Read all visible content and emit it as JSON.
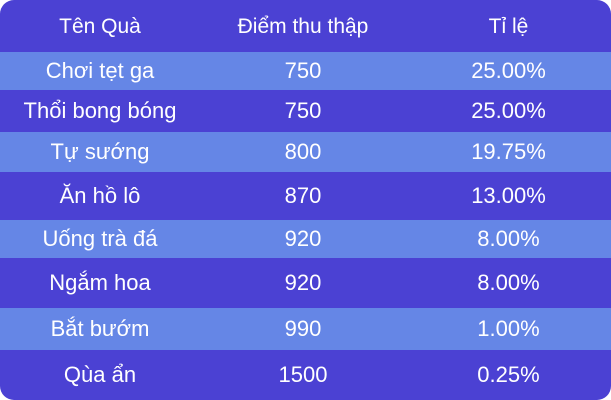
{
  "table": {
    "headers": [
      "Tên Quà",
      "Điểm thu thập",
      "Tỉ lệ"
    ],
    "rows": [
      {
        "name": "Chơi tẹt ga",
        "points": "750",
        "rate": "25.00%"
      },
      {
        "name": "Thổi bong bóng",
        "points": "750",
        "rate": "25.00%"
      },
      {
        "name": "Tự sướng",
        "points": "800",
        "rate": "19.75%"
      },
      {
        "name": "Ăn hồ lô",
        "points": "870",
        "rate": "13.00%"
      },
      {
        "name": "Uống trà đá",
        "points": "920",
        "rate": "8.00%"
      },
      {
        "name": "Ngắm hoa",
        "points": "920",
        "rate": "8.00%"
      },
      {
        "name": "Bắt bướm",
        "points": "990",
        "rate": "1.00%"
      },
      {
        "name": "Qùa ẩn",
        "points": "1500",
        "rate": "0.25%"
      }
    ]
  },
  "colors": {
    "background": "#4b41d3",
    "row_stripe": "#6586e6",
    "text": "#ffffff"
  }
}
